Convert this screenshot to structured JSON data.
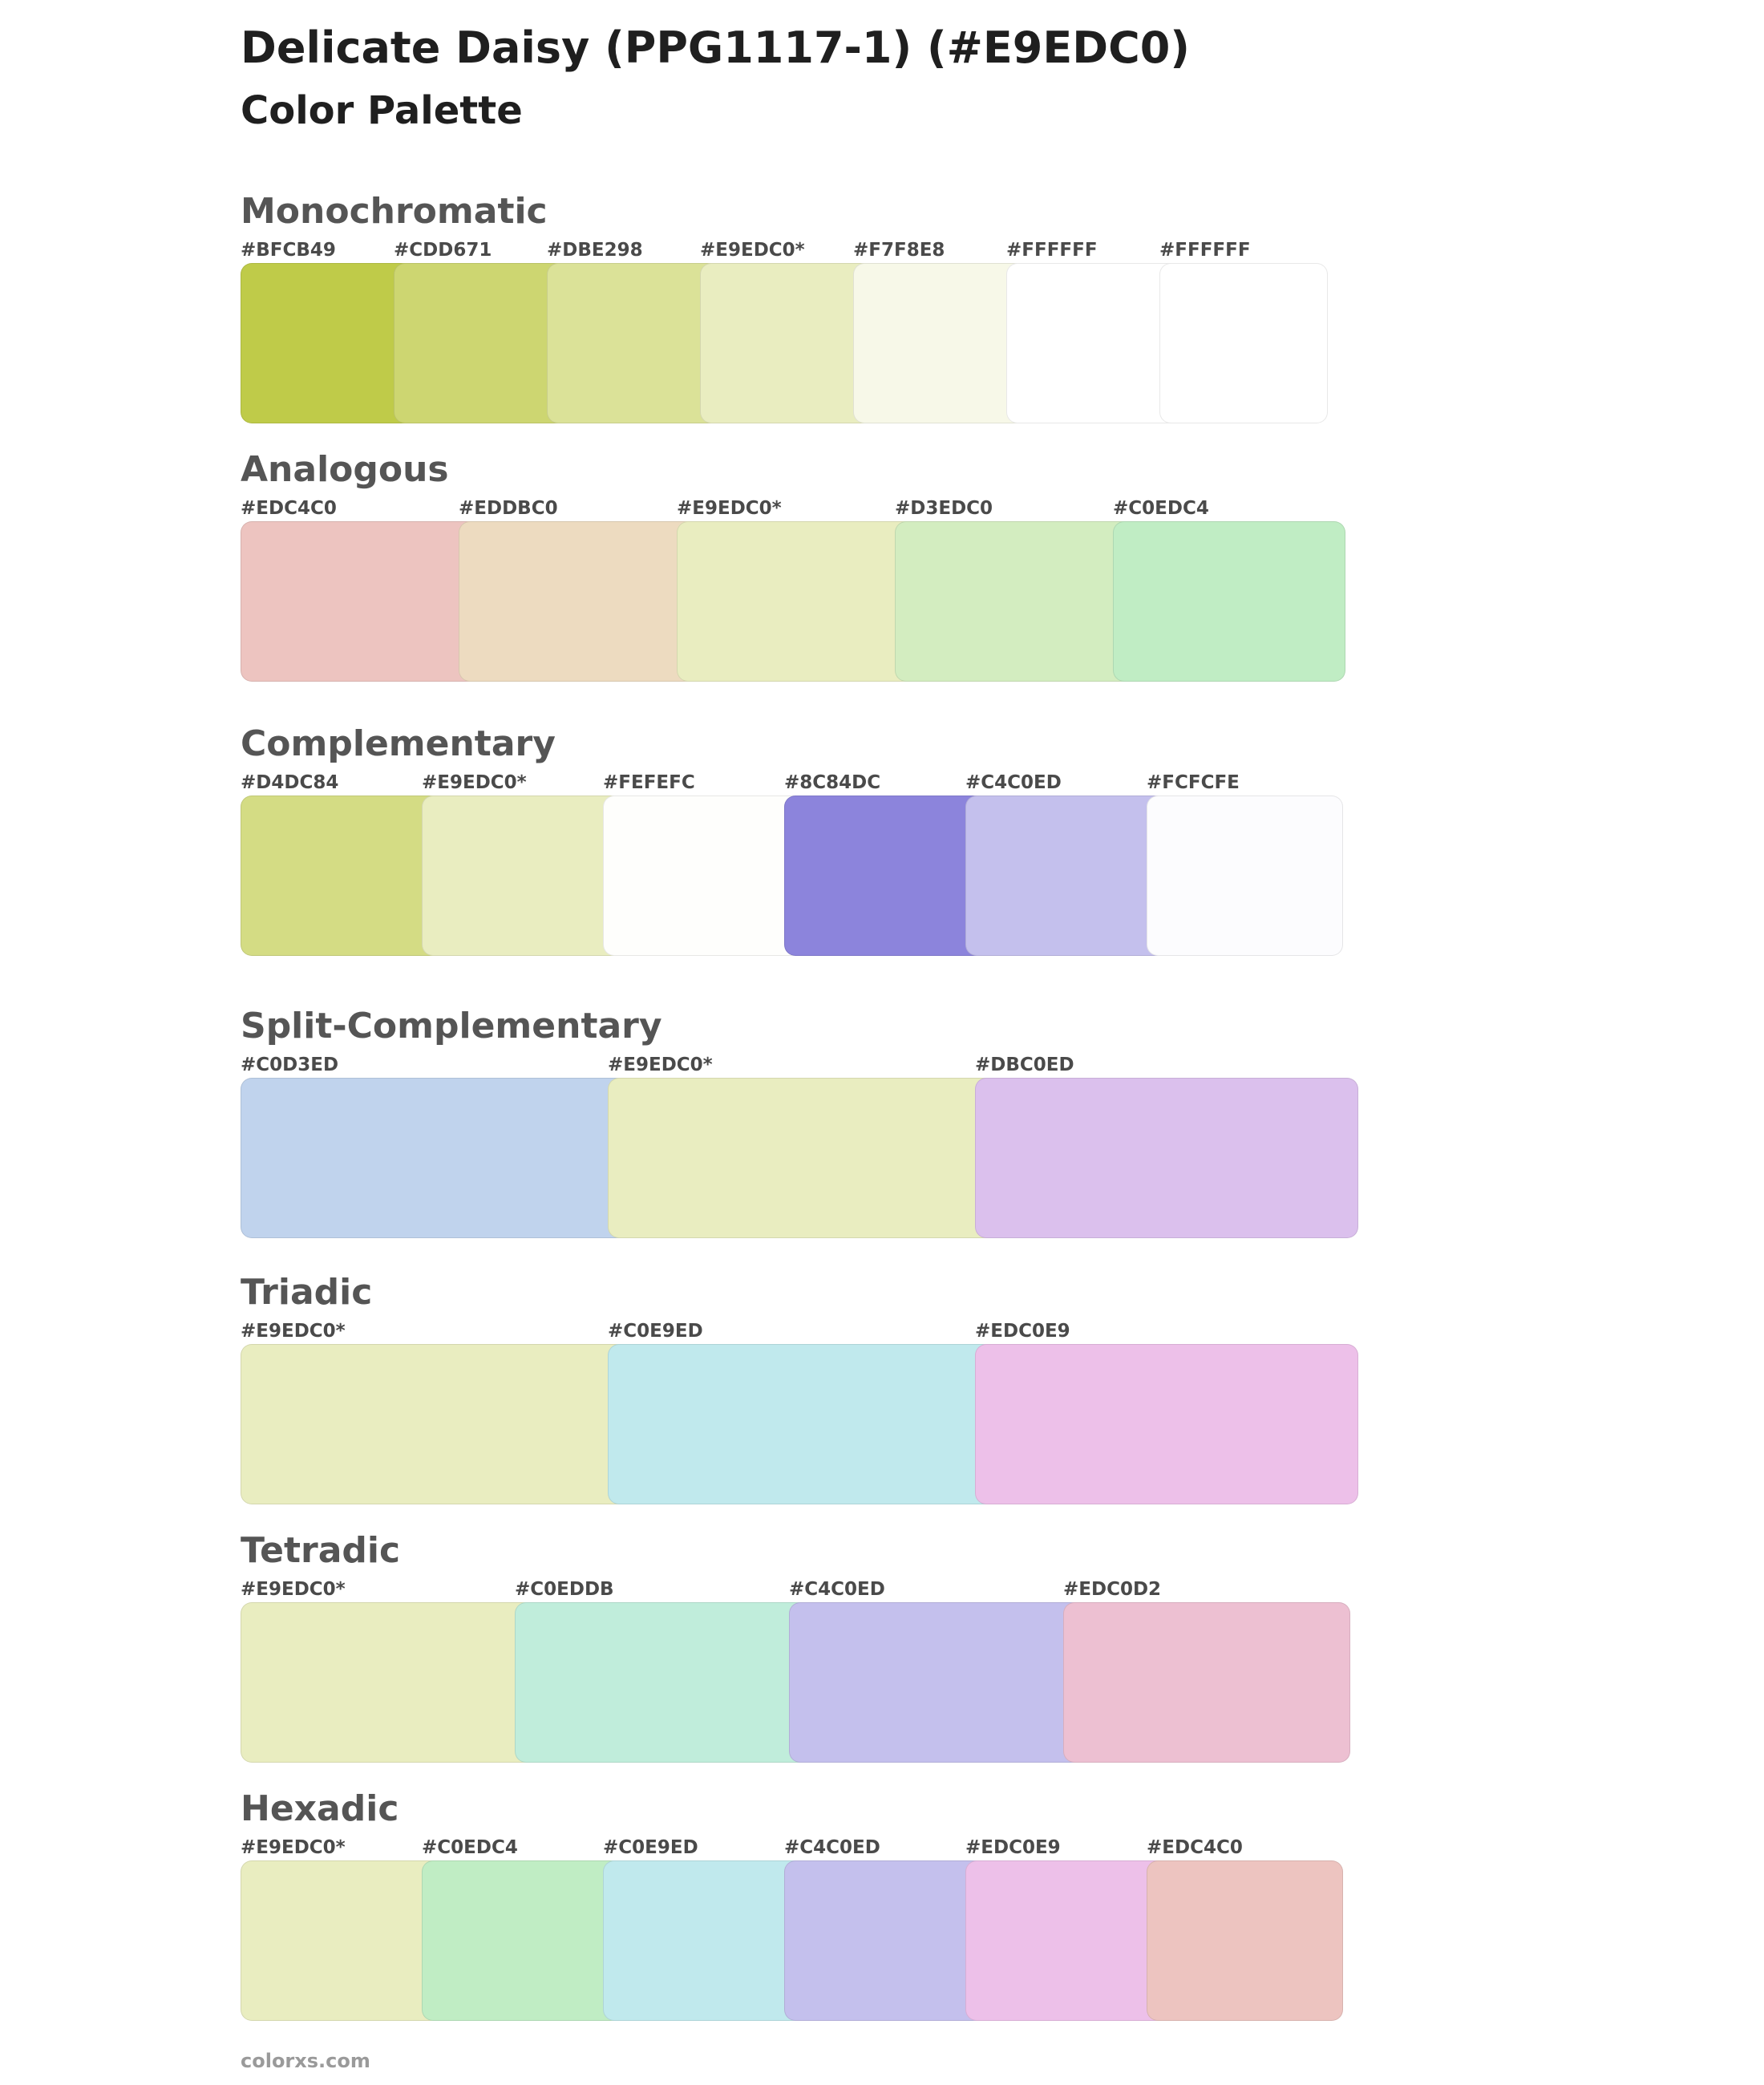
{
  "title": "Delicate Daisy (PPG1117-1) (#E9EDC0)",
  "subtitle": "Color Palette",
  "footer": "colorxs.com",
  "palettes": [
    {
      "name": "Monochromatic",
      "swatches": [
        {
          "label": "#BFCB49",
          "color": "#BFCB49"
        },
        {
          "label": "#CDD671",
          "color": "#CDD671"
        },
        {
          "label": "#DBE298",
          "color": "#DBE298"
        },
        {
          "label": "#E9EDC0*",
          "color": "#E9EDC0"
        },
        {
          "label": "#F7F8E8",
          "color": "#F7F8E8"
        },
        {
          "label": "#FFFFFF",
          "color": "#FFFFFF"
        },
        {
          "label": "#FFFFFF",
          "color": "#FFFFFF"
        }
      ]
    },
    {
      "name": "Analogous",
      "swatches": [
        {
          "label": "#EDC4C0",
          "color": "#EDC4C0"
        },
        {
          "label": "#EDDBC0",
          "color": "#EDDBC0"
        },
        {
          "label": "#E9EDC0*",
          "color": "#E9EDC0"
        },
        {
          "label": "#D3EDC0",
          "color": "#D3EDC0"
        },
        {
          "label": "#C0EDC4",
          "color": "#C0EDC4"
        }
      ]
    },
    {
      "name": "Complementary",
      "swatches": [
        {
          "label": "#D4DC84",
          "color": "#D4DC84"
        },
        {
          "label": "#E9EDC0*",
          "color": "#E9EDC0"
        },
        {
          "label": "#FEFEFC",
          "color": "#FEFEFC"
        },
        {
          "label": "#8C84DC",
          "color": "#8C84DC"
        },
        {
          "label": "#C4C0ED",
          "color": "#C4C0ED"
        },
        {
          "label": "#FCFCFE",
          "color": "#FCFCFE"
        }
      ]
    },
    {
      "name": "Split-Complementary",
      "swatches": [
        {
          "label": "#C0D3ED",
          "color": "#C0D3ED"
        },
        {
          "label": "#E9EDC0*",
          "color": "#E9EDC0"
        },
        {
          "label": "#DBC0ED",
          "color": "#DBC0ED"
        }
      ]
    },
    {
      "name": "Triadic",
      "swatches": [
        {
          "label": "#E9EDC0*",
          "color": "#E9EDC0"
        },
        {
          "label": "#C0E9ED",
          "color": "#C0E9ED"
        },
        {
          "label": "#EDC0E9",
          "color": "#EDC0E9"
        }
      ]
    },
    {
      "name": "Tetradic",
      "swatches": [
        {
          "label": "#E9EDC0*",
          "color": "#E9EDC0"
        },
        {
          "label": "#C0EDDB",
          "color": "#C0EDDB"
        },
        {
          "label": "#C4C0ED",
          "color": "#C4C0ED"
        },
        {
          "label": "#EDC0D2",
          "color": "#EDC0D2"
        }
      ]
    },
    {
      "name": "Hexadic",
      "swatches": [
        {
          "label": "#E9EDC0*",
          "color": "#E9EDC0"
        },
        {
          "label": "#C0EDC4",
          "color": "#C0EDC4"
        },
        {
          "label": "#C0E9ED",
          "color": "#C0E9ED"
        },
        {
          "label": "#C4C0ED",
          "color": "#C4C0ED"
        },
        {
          "label": "#EDC0E9",
          "color": "#EDC0E9"
        },
        {
          "label": "#EDC4C0",
          "color": "#EDC4C0"
        }
      ]
    }
  ]
}
